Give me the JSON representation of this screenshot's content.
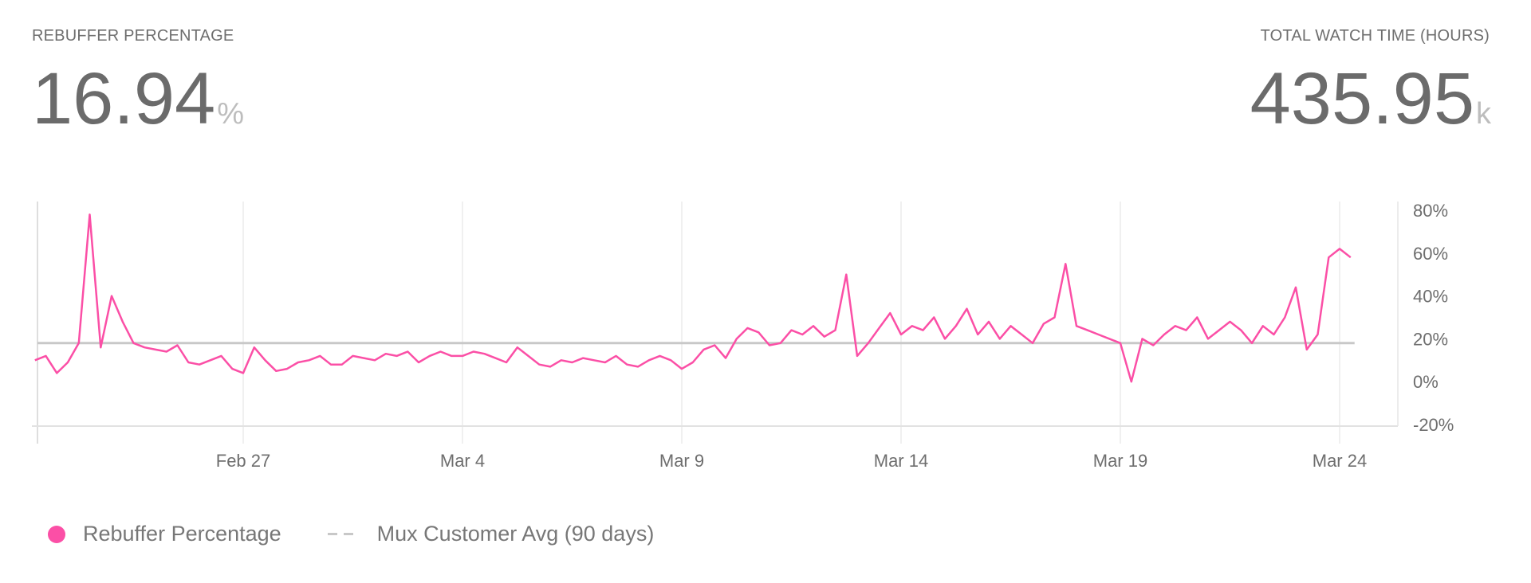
{
  "left_metric": {
    "label": "REBUFFER PERCENTAGE",
    "value": "16.94",
    "unit": "%"
  },
  "right_metric": {
    "label": "TOTAL WATCH TIME (HOURS)",
    "value": "435.95",
    "unit": "k"
  },
  "chart_data": {
    "type": "line",
    "title": "",
    "xlabel": "",
    "ylabel": "",
    "x_ticks": [
      "Feb 27",
      "Mar 4",
      "Mar 9",
      "Mar 14",
      "Mar 19",
      "Mar 24"
    ],
    "y_ticks": [
      "80%",
      "60%",
      "40%",
      "20%",
      "0%",
      "-20%"
    ],
    "ylim": [
      -20,
      80
    ],
    "y_axis_position": "right",
    "grid": "vertical",
    "legend_position": "bottom-left",
    "series": [
      {
        "name": "Rebuffer Percentage",
        "color": "#fb4fa6",
        "points": [
          [
            "Feb 22 06:00",
            10
          ],
          [
            "Feb 22 12:00",
            12
          ],
          [
            "Feb 22 18:00",
            4
          ],
          [
            "Feb 23 00:00",
            9
          ],
          [
            "Feb 23 06:00",
            18
          ],
          [
            "Feb 23 12:00",
            78
          ],
          [
            "Feb 23 18:00",
            16
          ],
          [
            "Feb 24 00:00",
            40
          ],
          [
            "Feb 24 06:00",
            28
          ],
          [
            "Feb 24 12:00",
            18
          ],
          [
            "Feb 24 18:00",
            16
          ],
          [
            "Feb 25 00:00",
            15
          ],
          [
            "Feb 25 06:00",
            14
          ],
          [
            "Feb 25 12:00",
            17
          ],
          [
            "Feb 25 18:00",
            9
          ],
          [
            "Feb 26 00:00",
            8
          ],
          [
            "Feb 26 06:00",
            10
          ],
          [
            "Feb 26 12:00",
            12
          ],
          [
            "Feb 26 18:00",
            6
          ],
          [
            "Feb 27 00:00",
            4
          ],
          [
            "Feb 27 06:00",
            16
          ],
          [
            "Feb 27 12:00",
            10
          ],
          [
            "Feb 27 18:00",
            5
          ],
          [
            "Feb 28 00:00",
            6
          ],
          [
            "Feb 28 06:00",
            9
          ],
          [
            "Feb 28 12:00",
            10
          ],
          [
            "Feb 28 18:00",
            12
          ],
          [
            "Mar 1 00:00",
            8
          ],
          [
            "Mar 1 06:00",
            8
          ],
          [
            "Mar 1 12:00",
            12
          ],
          [
            "Mar 1 18:00",
            11
          ],
          [
            "Mar 2 00:00",
            10
          ],
          [
            "Mar 2 06:00",
            13
          ],
          [
            "Mar 2 12:00",
            12
          ],
          [
            "Mar 2 18:00",
            14
          ],
          [
            "Mar 3 00:00",
            9
          ],
          [
            "Mar 3 06:00",
            12
          ],
          [
            "Mar 3 12:00",
            14
          ],
          [
            "Mar 3 18:00",
            12
          ],
          [
            "Mar 4 00:00",
            12
          ],
          [
            "Mar 4 06:00",
            14
          ],
          [
            "Mar 4 12:00",
            13
          ],
          [
            "Mar 4 18:00",
            11
          ],
          [
            "Mar 5 00:00",
            9
          ],
          [
            "Mar 5 06:00",
            16
          ],
          [
            "Mar 5 12:00",
            12
          ],
          [
            "Mar 5 18:00",
            8
          ],
          [
            "Mar 6 00:00",
            7
          ],
          [
            "Mar 6 06:00",
            10
          ],
          [
            "Mar 6 12:00",
            9
          ],
          [
            "Mar 6 18:00",
            11
          ],
          [
            "Mar 7 00:00",
            10
          ],
          [
            "Mar 7 06:00",
            9
          ],
          [
            "Mar 7 12:00",
            12
          ],
          [
            "Mar 7 18:00",
            8
          ],
          [
            "Mar 8 00:00",
            7
          ],
          [
            "Mar 8 06:00",
            10
          ],
          [
            "Mar 8 12:00",
            12
          ],
          [
            "Mar 8 18:00",
            10
          ],
          [
            "Mar 9 00:00",
            6
          ],
          [
            "Mar 9 06:00",
            9
          ],
          [
            "Mar 9 12:00",
            15
          ],
          [
            "Mar 9 18:00",
            17
          ],
          [
            "Mar 10 00:00",
            11
          ],
          [
            "Mar 10 06:00",
            20
          ],
          [
            "Mar 10 12:00",
            25
          ],
          [
            "Mar 10 18:00",
            23
          ],
          [
            "Mar 11 00:00",
            17
          ],
          [
            "Mar 11 06:00",
            18
          ],
          [
            "Mar 11 12:00",
            24
          ],
          [
            "Mar 11 18:00",
            22
          ],
          [
            "Mar 12 00:00",
            26
          ],
          [
            "Mar 12 06:00",
            21
          ],
          [
            "Mar 12 12:00",
            24
          ],
          [
            "Mar 12 18:00",
            50
          ],
          [
            "Mar 13 00:00",
            12
          ],
          [
            "Mar 13 06:00",
            18
          ],
          [
            "Mar 13 12:00",
            25
          ],
          [
            "Mar 13 18:00",
            32
          ],
          [
            "Mar 14 00:00",
            22
          ],
          [
            "Mar 14 06:00",
            26
          ],
          [
            "Mar 14 12:00",
            24
          ],
          [
            "Mar 14 18:00",
            30
          ],
          [
            "Mar 15 00:00",
            20
          ],
          [
            "Mar 15 06:00",
            26
          ],
          [
            "Mar 15 12:00",
            34
          ],
          [
            "Mar 15 18:00",
            22
          ],
          [
            "Mar 16 00:00",
            28
          ],
          [
            "Mar 16 06:00",
            20
          ],
          [
            "Mar 16 12:00",
            26
          ],
          [
            "Mar 16 18:00",
            22
          ],
          [
            "Mar 17 00:00",
            18
          ],
          [
            "Mar 17 06:00",
            27
          ],
          [
            "Mar 17 12:00",
            30
          ],
          [
            "Mar 17 18:00",
            55
          ],
          [
            "Mar 18 00:00",
            26
          ],
          [
            "Mar 18 06:00",
            24
          ],
          [
            "Mar 18 12:00",
            22
          ],
          [
            "Mar 18 18:00",
            20
          ],
          [
            "Mar 19 00:00",
            18
          ],
          [
            "Mar 19 06:00",
            0
          ],
          [
            "Mar 19 12:00",
            20
          ],
          [
            "Mar 19 18:00",
            17
          ],
          [
            "Mar 20 00:00",
            22
          ],
          [
            "Mar 20 06:00",
            26
          ],
          [
            "Mar 20 12:00",
            24
          ],
          [
            "Mar 20 18:00",
            30
          ],
          [
            "Mar 21 00:00",
            20
          ],
          [
            "Mar 21 06:00",
            24
          ],
          [
            "Mar 21 12:00",
            28
          ],
          [
            "Mar 21 18:00",
            24
          ],
          [
            "Mar 22 00:00",
            18
          ],
          [
            "Mar 22 06:00",
            26
          ],
          [
            "Mar 22 12:00",
            22
          ],
          [
            "Mar 22 18:00",
            30
          ],
          [
            "Mar 23 00:00",
            44
          ],
          [
            "Mar 23 06:00",
            15
          ],
          [
            "Mar 23 12:00",
            22
          ],
          [
            "Mar 23 18:00",
            58
          ],
          [
            "Mar 24 00:00",
            62
          ],
          [
            "Mar 24 06:00",
            58
          ]
        ]
      },
      {
        "name": "Mux Customer Avg (90 days)",
        "color": "#c8c8c8",
        "style": "dashed",
        "value": 18
      }
    ]
  }
}
